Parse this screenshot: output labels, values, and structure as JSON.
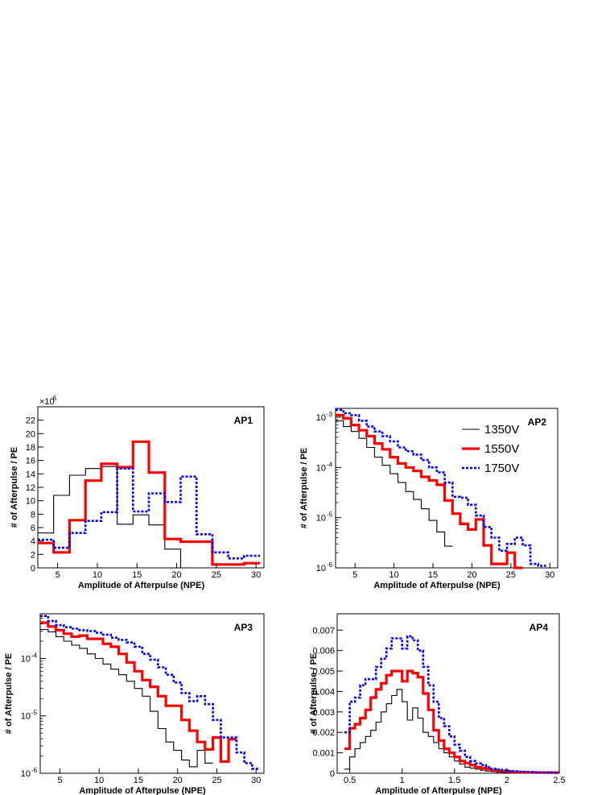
{
  "chart_data": [
    {
      "type": "line",
      "panel_label": "AP1",
      "xlabel": "Amplitude of Afterpulse (NPE)",
      "ylabel": "# of Afterpulse / PE",
      "xlim": [
        2.5,
        31
      ],
      "ylim": [
        0,
        24
      ],
      "y_multiplier_label": "×10",
      "y_multiplier_exp": "-6",
      "x_ticks": [
        5,
        10,
        15,
        20,
        25,
        30
      ],
      "x_tick_labels": [
        "5",
        "10",
        "15",
        "20",
        "25",
        "30"
      ],
      "y_ticks": [
        0,
        2,
        4,
        6,
        8,
        10,
        12,
        14,
        16,
        18,
        20,
        22
      ],
      "y_tick_labels": [
        "0",
        "2",
        "4",
        "6",
        "8",
        "10",
        "12",
        "14",
        "16",
        "18",
        "20",
        "22"
      ],
      "log_y": false,
      "step_width": 2,
      "series": [
        {
          "name": "1350V",
          "color": "#000000",
          "style": "thin",
          "x": [
            2.5,
            4.5,
            6.5,
            8.5,
            10.5,
            12.5,
            14.5,
            16.5,
            18.5,
            20.5
          ],
          "values": [
            5.2,
            10.8,
            13.8,
            14.8,
            15.1,
            6.5,
            7.9,
            6.4,
            2.8,
            0
          ]
        },
        {
          "name": "1550V",
          "color": "#ff0000",
          "style": "thick",
          "x": [
            2.5,
            4.5,
            6.5,
            8.5,
            10.5,
            12.5,
            14.5,
            16.5,
            18.5,
            20.5,
            22.5,
            24.5,
            26.5,
            28.5
          ],
          "values": [
            3.7,
            2.3,
            7.1,
            13.0,
            15.5,
            15.0,
            18.8,
            14.2,
            4.3,
            3.9,
            3.9,
            0.5,
            0.5,
            0.7
          ]
        },
        {
          "name": "1750V",
          "color": "#0000ff",
          "style": "dotted",
          "x": [
            2.5,
            4.5,
            6.5,
            8.5,
            10.5,
            12.5,
            14.5,
            16.5,
            18.5,
            20.5,
            22.5,
            24.5,
            26.5,
            28.5
          ],
          "values": [
            4.2,
            3.0,
            5.2,
            7.0,
            8.3,
            14.8,
            8.4,
            11.1,
            9.8,
            13.6,
            5.0,
            2.3,
            1.4,
            1.8
          ]
        }
      ]
    },
    {
      "type": "line",
      "panel_label": "AP2",
      "xlabel": "Amplitude of Afterpulse (NPE)",
      "ylabel": "# of Afterpulse / PE",
      "xlim": [
        2.5,
        31
      ],
      "ylim": [
        1e-06,
        0.0015
      ],
      "log_y": true,
      "x_ticks": [
        5,
        10,
        15,
        20,
        25,
        30
      ],
      "x_tick_labels": [
        "5",
        "10",
        "15",
        "20",
        "25",
        "30"
      ],
      "y_ticks": [
        1e-06,
        1e-05,
        0.0001,
        0.001
      ],
      "y_tick_bases": [
        "10",
        "10",
        "10",
        "10"
      ],
      "y_tick_exps": [
        "-6",
        "-5",
        "-4",
        "-3"
      ],
      "step_width": 1,
      "legend": {
        "placement": "top-right",
        "entries": [
          "1350V",
          "1550V",
          "1750V"
        ]
      },
      "series": [
        {
          "name": "1350V",
          "color": "#000000",
          "style": "thin",
          "x": [
            2.5,
            3.5,
            4.5,
            5.5,
            6.5,
            7.5,
            8.5,
            9.5,
            10.5,
            11.5,
            12.5,
            13.5,
            14.5,
            15.5,
            16.5
          ],
          "values": [
            0.00085,
            0.00065,
            0.00052,
            0.00038,
            0.00025,
            0.00016,
            0.00011,
            7.5e-05,
            5e-05,
            3.3e-05,
            2.3e-05,
            1.5e-05,
            8.8e-06,
            5.2e-06,
            2.7e-06
          ]
        },
        {
          "name": "1550V",
          "color": "#ff0000",
          "style": "thick",
          "x": [
            2.5,
            3.5,
            4.5,
            5.5,
            6.5,
            7.5,
            8.5,
            9.5,
            10.5,
            11.5,
            12.5,
            13.5,
            14.5,
            15.5,
            16.5,
            17.5,
            18.5,
            19.5,
            20.5,
            21.5,
            22.5,
            23.5,
            24.5,
            25.5
          ],
          "values": [
            0.0011,
            0.00095,
            0.0007,
            0.00055,
            0.00042,
            0.0003,
            0.00023,
            0.00016,
            0.00012,
            0.0001,
            8.5e-05,
            6.5e-05,
            5.5e-05,
            4.5e-05,
            2.2e-05,
            1.2e-05,
            7.5e-06,
            5.8e-06,
            9.2e-06,
            2.8e-06,
            1.2e-06,
            1.2e-06,
            2e-06,
            1e-06
          ]
        },
        {
          "name": "1750V",
          "color": "#0000ff",
          "style": "dotted",
          "x": [
            2.5,
            3.5,
            4.5,
            5.5,
            6.5,
            7.5,
            8.5,
            9.5,
            10.5,
            11.5,
            12.5,
            13.5,
            14.5,
            15.5,
            16.5,
            17.5,
            18.5,
            19.5,
            20.5,
            21.5,
            22.5,
            23.5,
            24.5,
            25.5,
            26.5,
            27.5,
            28.5
          ],
          "values": [
            0.0014,
            0.0012,
            0.0011,
            0.00085,
            0.00065,
            0.00052,
            0.00042,
            0.00033,
            0.00025,
            0.00021,
            0.00018,
            0.00014,
            0.0001,
            8e-05,
            5e-05,
            2.6e-05,
            2.5e-05,
            1.8e-05,
            1.1e-05,
            6.5e-06,
            4e-06,
            2.2e-06,
            3e-06,
            4e-06,
            2.8e-06,
            1.2e-06,
            1.1e-06
          ]
        }
      ]
    },
    {
      "type": "line",
      "panel_label": "AP3",
      "xlabel": "Amplitude of Afterpulse (NPE)",
      "ylabel": "# of Afterpulse / PE",
      "xlim": [
        2.5,
        31
      ],
      "ylim": [
        1e-06,
        0.0006
      ],
      "log_y": true,
      "x_ticks": [
        5,
        10,
        15,
        20,
        25,
        30
      ],
      "x_tick_labels": [
        "5",
        "10",
        "15",
        "20",
        "25",
        "30"
      ],
      "y_ticks": [
        1e-06,
        1e-05,
        0.0001
      ],
      "y_tick_bases": [
        "10",
        "10",
        "10"
      ],
      "y_tick_exps": [
        "-6",
        "-5",
        "-4"
      ],
      "step_width": 1,
      "series": [
        {
          "name": "1350V",
          "color": "#000000",
          "style": "thin",
          "x": [
            2.5,
            3.5,
            4.5,
            5.5,
            6.5,
            7.5,
            8.5,
            9.5,
            10.5,
            11.5,
            12.5,
            13.5,
            14.5,
            15.5,
            16.5,
            17.5,
            18.5,
            19.5,
            20.5,
            21.5,
            22.5,
            23.5
          ],
          "values": [
            0.00032,
            0.00029,
            0.00024,
            0.0002,
            0.00017,
            0.00015,
            0.00012,
            0.0001,
            8e-05,
            6.5e-05,
            5.2e-05,
            4e-05,
            3e-05,
            2.2e-05,
            1.2e-05,
            6e-06,
            3.5e-06,
            2.5e-06,
            1.7e-06,
            1.3e-06,
            2.5e-06,
            1.5e-06
          ]
        },
        {
          "name": "1550V",
          "color": "#ff0000",
          "style": "thick",
          "x": [
            2.5,
            3.5,
            4.5,
            5.5,
            6.5,
            7.5,
            8.5,
            9.5,
            10.5,
            11.5,
            12.5,
            13.5,
            14.5,
            15.5,
            16.5,
            17.5,
            18.5,
            19.5,
            20.5,
            21.5,
            22.5,
            23.5,
            24.5,
            25.5,
            26.5
          ],
          "values": [
            0.00042,
            0.00036,
            0.00031,
            0.00027,
            0.00024,
            0.00025,
            0.00022,
            0.00022,
            0.00018,
            0.00016,
            0.00012,
            8.5e-05,
            6e-05,
            4.2e-05,
            3.2e-05,
            2.2e-05,
            1.5e-05,
            1.5e-05,
            8.5e-06,
            5.5e-06,
            3.5e-06,
            2.6e-06,
            4.2e-06,
            1.6e-06,
            3.9e-06
          ]
        },
        {
          "name": "1750V",
          "color": "#0000ff",
          "style": "dotted",
          "x": [
            2.5,
            3.5,
            4.5,
            5.5,
            6.5,
            7.5,
            8.5,
            9.5,
            10.5,
            11.5,
            12.5,
            13.5,
            14.5,
            15.5,
            16.5,
            17.5,
            18.5,
            19.5,
            20.5,
            21.5,
            22.5,
            23.5,
            24.5,
            25.5,
            26.5,
            27.5,
            28.5,
            29.5
          ],
          "values": [
            0.00055,
            0.00045,
            0.00038,
            0.00035,
            0.00033,
            0.00031,
            0.0003,
            0.00028,
            0.00026,
            0.00023,
            0.00021,
            0.00019,
            0.00016,
            0.00012,
            9.5e-05,
            7e-05,
            5.2e-05,
            3.8e-05,
            2.5e-05,
            1.8e-05,
            2.2e-05,
            1.6e-05,
            8.5e-06,
            4.2e-06,
            4.2e-06,
            2.3e-06,
            1.5e-06,
            1.2e-06
          ]
        }
      ]
    },
    {
      "type": "line",
      "panel_label": "AP4",
      "xlabel": "Amplitude of Afterpulse (NPE)",
      "ylabel": "# of Afterpulse / PE",
      "xlim": [
        0.38,
        2.5
      ],
      "ylim": [
        0,
        0.0078
      ],
      "log_y": false,
      "x_ticks": [
        0.5,
        1,
        1.5,
        2,
        2.5
      ],
      "x_tick_labels": [
        "0.5",
        "1",
        "1.5",
        "2",
        "2.5"
      ],
      "y_ticks": [
        0,
        0.001,
        0.002,
        0.003,
        0.004,
        0.005,
        0.006,
        0.007
      ],
      "y_tick_labels": [
        "0",
        "0.001",
        "0.002",
        "0.003",
        "0.004",
        "0.005",
        "0.006",
        "0.007"
      ],
      "step_width": 0.05,
      "series": [
        {
          "name": "1350V",
          "color": "#000000",
          "style": "thin",
          "x": [
            0.45,
            0.5,
            0.55,
            0.6,
            0.65,
            0.7,
            0.75,
            0.8,
            0.85,
            0.9,
            0.95,
            1.0,
            1.05,
            1.1,
            1.15,
            1.2,
            1.25,
            1.3,
            1.35,
            1.4,
            1.45,
            1.5,
            1.55,
            1.6,
            1.65,
            1.7,
            1.75,
            1.8,
            1.85,
            1.9,
            1.95,
            2.0,
            2.05,
            2.1,
            2.15,
            2.2,
            2.25,
            2.3,
            2.35,
            2.4,
            2.45
          ],
          "values": [
            0.0002,
            0.0008,
            0.0012,
            0.0015,
            0.0018,
            0.0021,
            0.0025,
            0.003,
            0.0034,
            0.0038,
            0.0041,
            0.0035,
            0.0026,
            0.0032,
            0.0027,
            0.002,
            0.0018,
            0.0015,
            0.0012,
            0.001,
            0.0008,
            0.0006,
            0.00045,
            0.0003,
            0.00025,
            0.0002,
            0.00015,
            0.0001,
            8e-05,
            5e-05,
            3e-05,
            3e-05,
            2e-05,
            2e-05,
            1e-05,
            1e-05,
            1e-05,
            1e-05,
            1e-05,
            1e-05,
            1e-05
          ]
        },
        {
          "name": "1550V",
          "color": "#ff0000",
          "style": "thick",
          "x": [
            0.45,
            0.5,
            0.55,
            0.6,
            0.65,
            0.7,
            0.75,
            0.8,
            0.85,
            0.9,
            0.95,
            1.0,
            1.05,
            1.1,
            1.15,
            1.2,
            1.25,
            1.3,
            1.35,
            1.4,
            1.45,
            1.5,
            1.55,
            1.6,
            1.65,
            1.7,
            1.75,
            1.8,
            1.85,
            1.9,
            1.95,
            2.0,
            2.05,
            2.1,
            2.15,
            2.2,
            2.25,
            2.3,
            2.35,
            2.4,
            2.45
          ],
          "values": [
            0.0012,
            0.0022,
            0.0024,
            0.0027,
            0.0031,
            0.0037,
            0.0041,
            0.0044,
            0.0048,
            0.005,
            0.005,
            0.0045,
            0.005,
            0.0049,
            0.0047,
            0.0039,
            0.0031,
            0.0021,
            0.0016,
            0.0012,
            0.001,
            0.0008,
            0.0006,
            0.0005,
            0.0004,
            0.0003,
            0.00025,
            0.0002,
            0.00015,
            0.00012,
            0.0001,
            8e-05,
            6e-05,
            5e-05,
            4e-05,
            4e-05,
            3e-05,
            3e-05,
            3e-05,
            3e-05,
            3e-05
          ]
        },
        {
          "name": "1750V",
          "color": "#0000ff",
          "style": "dotted",
          "x": [
            0.45,
            0.5,
            0.55,
            0.6,
            0.65,
            0.7,
            0.75,
            0.8,
            0.85,
            0.9,
            0.95,
            1.0,
            1.05,
            1.1,
            1.15,
            1.2,
            1.25,
            1.3,
            1.35,
            1.4,
            1.45,
            1.5,
            1.55,
            1.6,
            1.65,
            1.7,
            1.75,
            1.8,
            1.85,
            1.9,
            1.95,
            2.0,
            2.05,
            2.1,
            2.15,
            2.2,
            2.25,
            2.3,
            2.35,
            2.4,
            2.45
          ],
          "values": [
            0.002,
            0.0035,
            0.0037,
            0.0043,
            0.0046,
            0.0046,
            0.0052,
            0.0056,
            0.0061,
            0.0066,
            0.0066,
            0.0061,
            0.0067,
            0.0065,
            0.006,
            0.0052,
            0.0043,
            0.0035,
            0.0027,
            0.0023,
            0.0018,
            0.0014,
            0.0011,
            0.0008,
            0.0006,
            0.00048,
            0.0004,
            0.0003,
            0.00022,
            0.00018,
            0.00015,
            0.00012,
            0.0001,
            8e-05,
            7e-05,
            6e-05,
            5e-05,
            4e-05,
            4e-05,
            3e-05,
            3e-05
          ]
        }
      ]
    }
  ]
}
